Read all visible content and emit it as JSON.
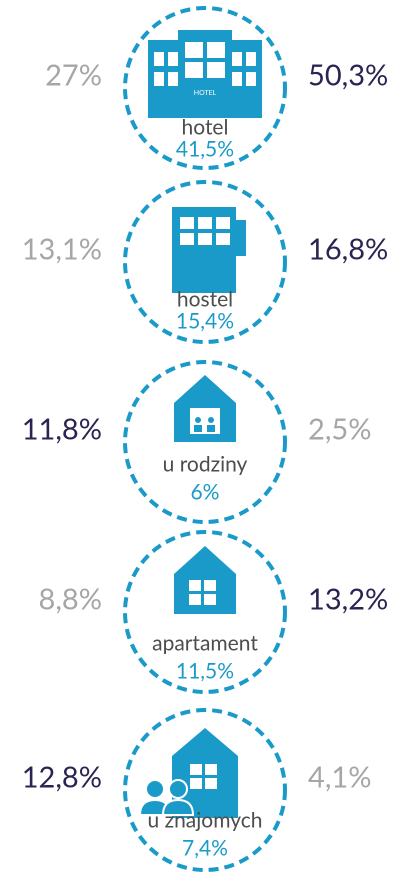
{
  "items": [
    {
      "label": "hotel",
      "total": "41,5%",
      "left": {
        "text": "27%",
        "color": "#a6a6a6"
      },
      "right": {
        "text": "50,3%",
        "color": "#2b2452"
      }
    },
    {
      "label": "hostel",
      "total": "15,4%",
      "left": {
        "text": "13,1%",
        "color": "#a6a6a6"
      },
      "right": {
        "text": "16,8%",
        "color": "#2b2452"
      }
    },
    {
      "label": "u rodziny",
      "total": "6%",
      "left": {
        "text": "11,8%",
        "color": "#2b2452"
      },
      "right": {
        "text": "2,5%",
        "color": "#a6a6a6"
      }
    },
    {
      "label": "apartament",
      "total": "11,5%",
      "left": {
        "text": "8,8%",
        "color": "#a6a6a6"
      },
      "right": {
        "text": "13,2%",
        "color": "#2b2452"
      }
    },
    {
      "label": "u znajomych",
      "total": "7,4%",
      "left": {
        "text": "12,8%",
        "color": "#2b2452"
      },
      "right": {
        "text": "4,1%",
        "color": "#a6a6a6"
      }
    }
  ],
  "hotel_sign": "HOTEL"
}
